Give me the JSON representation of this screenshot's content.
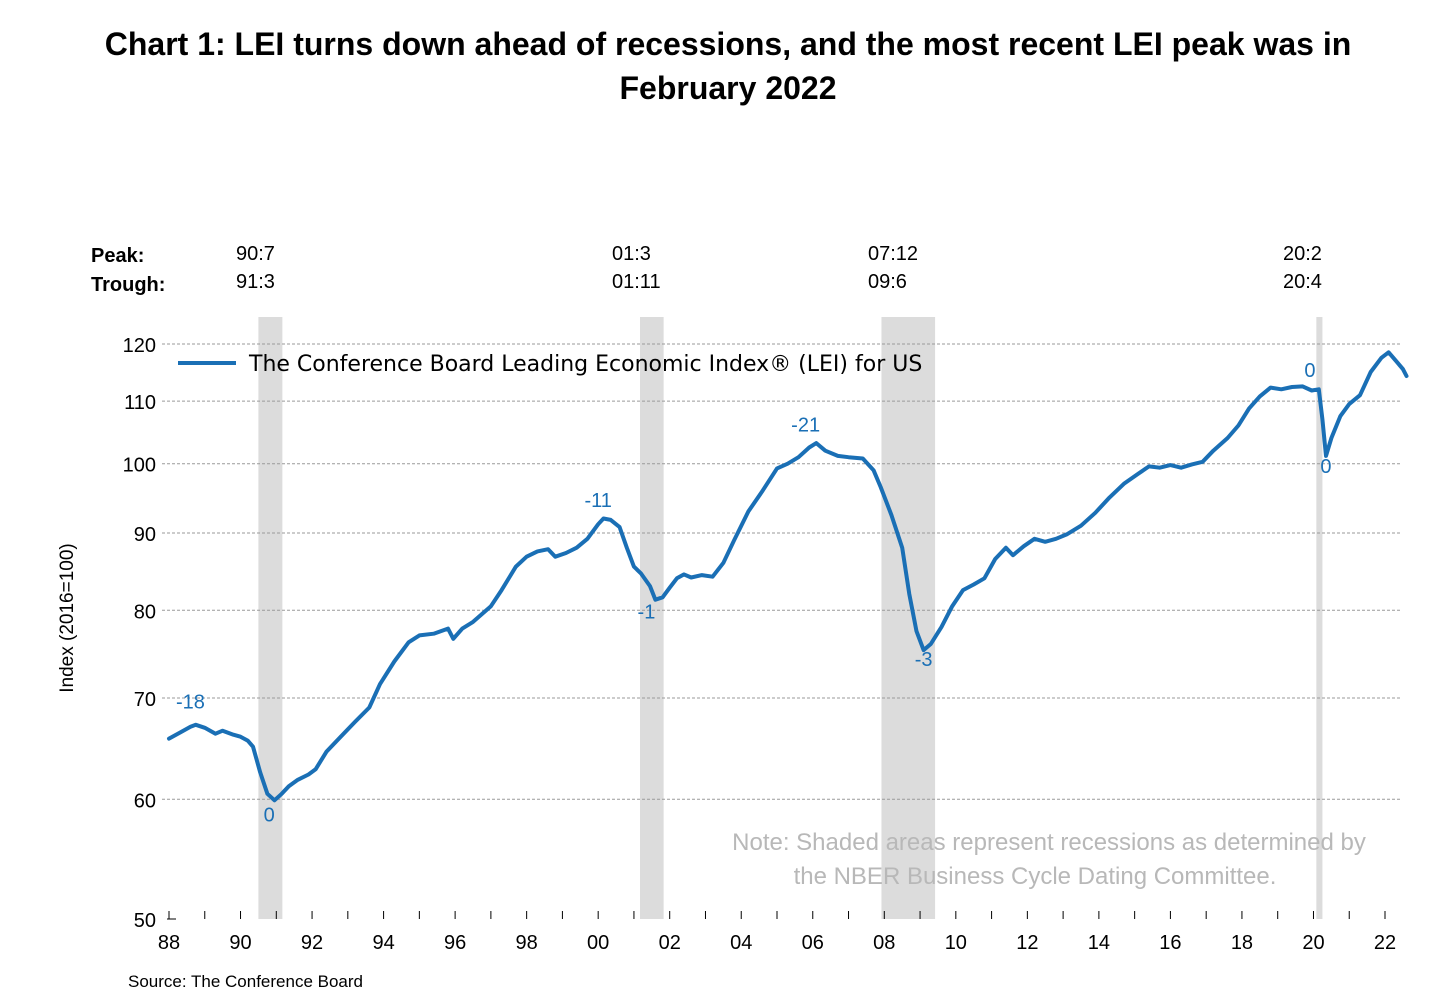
{
  "chart_data": {
    "type": "line",
    "title_lines": [
      "Chart 1: LEI turns down ahead of recessions, and the most recent LEI peak was in",
      "February 2022"
    ],
    "ylabel": "Index (2016=100)",
    "ylim": [
      50,
      123
    ],
    "y_scale": "log",
    "y_ticks": [
      50,
      60,
      70,
      80,
      90,
      100,
      110,
      120
    ],
    "xlim": [
      1988,
      2022.6
    ],
    "x_ticks": [
      1988,
      1990,
      1992,
      1994,
      1996,
      1998,
      2000,
      2002,
      2004,
      2006,
      2008,
      2010,
      2012,
      2014,
      2016,
      2018,
      2020,
      2022
    ],
    "x_tick_labels": [
      "88",
      "90",
      "92",
      "94",
      "96",
      "98",
      "00",
      "02",
      "04",
      "06",
      "08",
      "10",
      "12",
      "14",
      "16",
      "18",
      "20",
      "22"
    ],
    "grid": "horizontal dashed",
    "legend": {
      "position": "top-left",
      "label": "The Conference Board Leading Economic Index® (LEI) for US"
    },
    "series": [
      {
        "name": "The Conference Board Leading Economic Index® (LEI) for US",
        "color": "#1a6fb5",
        "points": [
          [
            1988.0,
            65.8
          ],
          [
            1988.3,
            66.4
          ],
          [
            1988.6,
            67.0
          ],
          [
            1988.75,
            67.2
          ],
          [
            1989.0,
            66.9
          ],
          [
            1989.3,
            66.3
          ],
          [
            1989.5,
            66.6
          ],
          [
            1989.8,
            66.2
          ],
          [
            1990.0,
            66.0
          ],
          [
            1990.2,
            65.6
          ],
          [
            1990.35,
            65.0
          ],
          [
            1990.55,
            62.5
          ],
          [
            1990.75,
            60.5
          ],
          [
            1990.95,
            59.9
          ],
          [
            1991.15,
            60.5
          ],
          [
            1991.35,
            61.2
          ],
          [
            1991.6,
            61.8
          ],
          [
            1991.9,
            62.3
          ],
          [
            1992.1,
            62.8
          ],
          [
            1992.4,
            64.5
          ],
          [
            1992.8,
            66.0
          ],
          [
            1993.2,
            67.5
          ],
          [
            1993.6,
            69.0
          ],
          [
            1993.9,
            71.5
          ],
          [
            1994.3,
            74.0
          ],
          [
            1994.7,
            76.2
          ],
          [
            1995.0,
            77.0
          ],
          [
            1995.4,
            77.2
          ],
          [
            1995.8,
            77.8
          ],
          [
            1995.95,
            76.6
          ],
          [
            1996.2,
            77.8
          ],
          [
            1996.5,
            78.6
          ],
          [
            1997.0,
            80.5
          ],
          [
            1997.3,
            82.5
          ],
          [
            1997.7,
            85.5
          ],
          [
            1998.0,
            86.8
          ],
          [
            1998.3,
            87.5
          ],
          [
            1998.6,
            87.8
          ],
          [
            1998.8,
            86.8
          ],
          [
            1999.1,
            87.3
          ],
          [
            1999.4,
            88.0
          ],
          [
            1999.7,
            89.2
          ],
          [
            2000.0,
            91.2
          ],
          [
            2000.15,
            92.0
          ],
          [
            2000.35,
            91.8
          ],
          [
            2000.6,
            90.8
          ],
          [
            2000.8,
            88.0
          ],
          [
            2001.0,
            85.5
          ],
          [
            2001.2,
            84.6
          ],
          [
            2001.45,
            83.0
          ],
          [
            2001.6,
            81.3
          ],
          [
            2001.8,
            81.6
          ],
          [
            2002.0,
            82.8
          ],
          [
            2002.2,
            84.0
          ],
          [
            2002.4,
            84.5
          ],
          [
            2002.6,
            84.1
          ],
          [
            2002.9,
            84.4
          ],
          [
            2003.2,
            84.2
          ],
          [
            2003.5,
            86.0
          ],
          [
            2003.8,
            89.0
          ],
          [
            2004.2,
            93.0
          ],
          [
            2004.6,
            96.0
          ],
          [
            2005.0,
            99.3
          ],
          [
            2005.3,
            100.0
          ],
          [
            2005.6,
            101.0
          ],
          [
            2005.9,
            102.5
          ],
          [
            2006.1,
            103.2
          ],
          [
            2006.35,
            102.0
          ],
          [
            2006.7,
            101.2
          ],
          [
            2007.0,
            101.0
          ],
          [
            2007.4,
            100.8
          ],
          [
            2007.7,
            99.0
          ],
          [
            2007.9,
            96.5
          ],
          [
            2008.2,
            92.5
          ],
          [
            2008.5,
            88.0
          ],
          [
            2008.7,
            82.0
          ],
          [
            2008.9,
            77.5
          ],
          [
            2009.1,
            75.3
          ],
          [
            2009.3,
            76.0
          ],
          [
            2009.6,
            78.0
          ],
          [
            2009.9,
            80.5
          ],
          [
            2010.2,
            82.5
          ],
          [
            2010.5,
            83.2
          ],
          [
            2010.8,
            84.0
          ],
          [
            2011.1,
            86.5
          ],
          [
            2011.4,
            88.0
          ],
          [
            2011.6,
            87.0
          ],
          [
            2011.9,
            88.2
          ],
          [
            2012.2,
            89.2
          ],
          [
            2012.5,
            88.8
          ],
          [
            2012.8,
            89.2
          ],
          [
            2013.1,
            89.8
          ],
          [
            2013.5,
            91.0
          ],
          [
            2013.9,
            92.8
          ],
          [
            2014.3,
            95.0
          ],
          [
            2014.7,
            97.0
          ],
          [
            2015.1,
            98.5
          ],
          [
            2015.4,
            99.6
          ],
          [
            2015.7,
            99.4
          ],
          [
            2016.0,
            99.8
          ],
          [
            2016.3,
            99.4
          ],
          [
            2016.6,
            99.9
          ],
          [
            2016.9,
            100.3
          ],
          [
            2017.2,
            102.0
          ],
          [
            2017.6,
            104.0
          ],
          [
            2017.9,
            106.0
          ],
          [
            2018.2,
            108.8
          ],
          [
            2018.5,
            110.8
          ],
          [
            2018.8,
            112.3
          ],
          [
            2019.1,
            112.0
          ],
          [
            2019.4,
            112.4
          ],
          [
            2019.7,
            112.5
          ],
          [
            2019.95,
            111.8
          ],
          [
            2020.15,
            112.0
          ],
          [
            2020.25,
            107.0
          ],
          [
            2020.35,
            101.2
          ],
          [
            2020.5,
            104.0
          ],
          [
            2020.75,
            107.5
          ],
          [
            2021.0,
            109.5
          ],
          [
            2021.3,
            111.0
          ],
          [
            2021.6,
            115.0
          ],
          [
            2021.9,
            117.5
          ],
          [
            2022.1,
            118.5
          ],
          [
            2022.3,
            117.0
          ],
          [
            2022.5,
            115.5
          ],
          [
            2022.6,
            114.3
          ]
        ]
      }
    ],
    "recessions": [
      {
        "start": 1990.5,
        "end": 1991.17,
        "peak": "90:7",
        "trough": "91:3"
      },
      {
        "start": 2001.17,
        "end": 2001.83,
        "peak": "01:3",
        "trough": "01:11"
      },
      {
        "start": 2007.92,
        "end": 2009.42,
        "peak": "07:12",
        "trough": "09:6"
      },
      {
        "start": 2020.08,
        "end": 2020.25,
        "peak": "20:2",
        "trough": "20:4"
      }
    ],
    "peak_trough_headers": {
      "peak": "Peak:",
      "trough": "Trough:"
    },
    "lead_annotations": [
      {
        "label": "-18",
        "x": 1988.6,
        "y": 68.9
      },
      {
        "label": "0",
        "x": 1990.8,
        "y": 58.0
      },
      {
        "label": "-11",
        "x": 2000.0,
        "y": 93.6
      },
      {
        "label": "-1",
        "x": 2001.35,
        "y": 79.0
      },
      {
        "label": "-21",
        "x": 2005.8,
        "y": 105.0
      },
      {
        "label": "-3",
        "x": 2009.1,
        "y": 73.5
      },
      {
        "label": "0",
        "x": 2019.9,
        "y": 114.1
      },
      {
        "label": "0",
        "x": 2020.35,
        "y": 98.6
      }
    ],
    "note_lines": [
      "Note: Shaded areas represent recessions as determined by",
      "the NBER Business Cycle Dating Committee."
    ],
    "source": "Source: The Conference Board"
  }
}
